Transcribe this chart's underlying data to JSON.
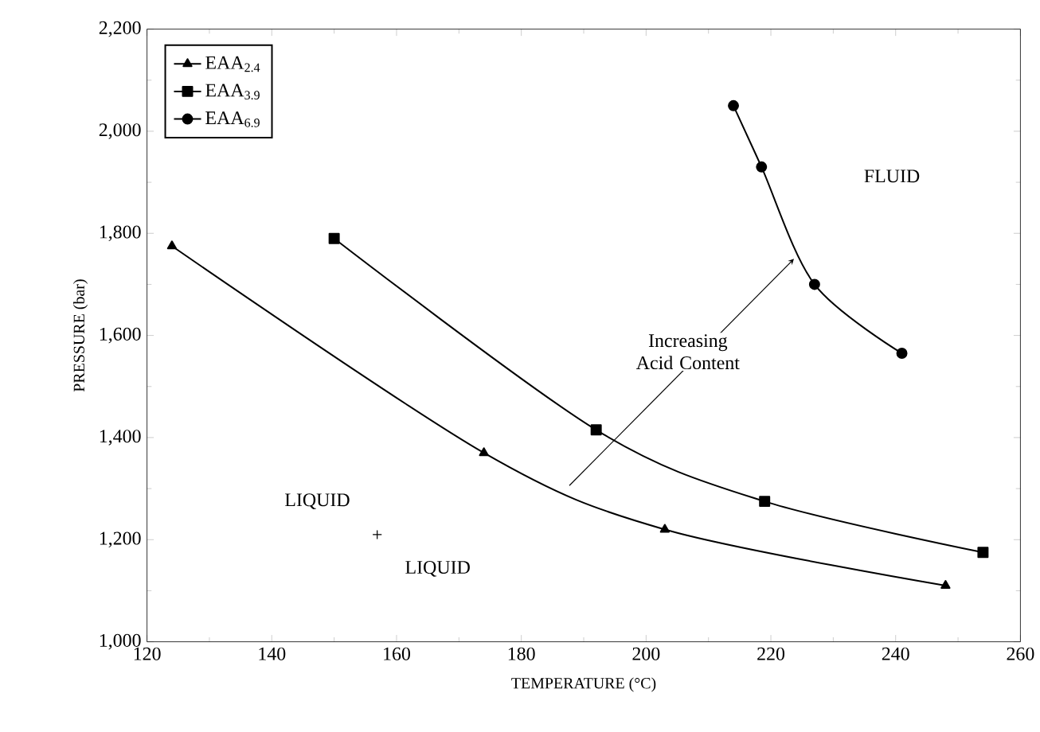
{
  "chart_data": {
    "type": "line",
    "xlabel": "TEMPERATURE (°C)",
    "ylabel": "PRESSURE (bar)",
    "xlim": [
      120,
      260
    ],
    "xticks": [
      120,
      140,
      160,
      180,
      200,
      220,
      240,
      260
    ],
    "ylim": [
      1000,
      2200
    ],
    "yticks": [
      {
        "value": 1000,
        "label": "1,000"
      },
      {
        "value": 1200,
        "label": "1,200"
      },
      {
        "value": 1400,
        "label": "1,400"
      },
      {
        "value": 1600,
        "label": "1,600"
      },
      {
        "value": 1800,
        "label": "1,800"
      },
      {
        "value": 2000,
        "label": "2,000"
      },
      {
        "value": 2200,
        "label": "2,200"
      }
    ],
    "series": [
      {
        "name": "EAA$_{2.4}$",
        "color": "#000000",
        "marker": "triangle",
        "x": [
          124,
          174,
          203,
          248
        ],
        "values": [
          1775,
          1370,
          1220,
          1110
        ]
      },
      {
        "name": "EAA$_{3.9}$",
        "color": "#000000",
        "marker": "square",
        "x": [
          150,
          192,
          219,
          254
        ],
        "values": [
          1790,
          1415,
          1275,
          1175
        ]
      },
      {
        "name": "EAA$_{6.9}$",
        "color": "#000000",
        "marker": "circle",
        "x": [
          214,
          218.5,
          227,
          241
        ],
        "values": [
          2050,
          1930,
          1700,
          1565
        ]
      }
    ],
    "legend": "top left",
    "grid": false,
    "annotations": [
      "FLUID",
      "LIQUID",
      "+",
      "LIQUID",
      "Increasing Acid Content"
    ]
  }
}
